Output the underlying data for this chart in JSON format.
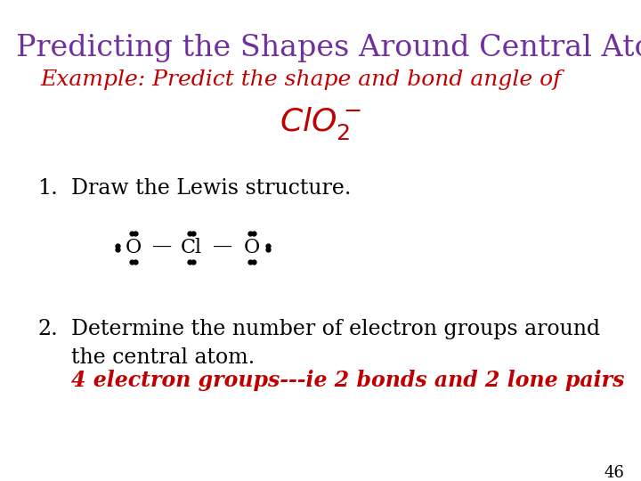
{
  "background_color": "#ffffff",
  "title_text": "Predicting the Shapes Around Central Atoms",
  "title_color": "#7030A0",
  "title_fontsize": 24,
  "subtitle_line1": "Example: Predict the shape and bond angle of",
  "subtitle_line1_color": "#C00000",
  "subtitle_line1_fontsize": 18,
  "subtitle_formula_fontsize": 26,
  "subtitle_formula_color": "#C00000",
  "item1_number": "1.",
  "item1_text": "Draw the Lewis structure.",
  "item1_color": "#000000",
  "item1_fontsize": 17,
  "item2_number": "2.",
  "item2_text": "Determine the number of electron groups around\nthe central atom.",
  "item2_color": "#000000",
  "item2_fontsize": 17,
  "item2_italic": "4 electron groups---ie 2 bonds and 2 lone pairs",
  "item2_italic_color": "#C00000",
  "item2_italic_fontsize": 17,
  "page_number": "46",
  "page_number_color": "#000000",
  "page_number_fontsize": 13,
  "dot_color": "#000000",
  "dot_size": 3.5
}
